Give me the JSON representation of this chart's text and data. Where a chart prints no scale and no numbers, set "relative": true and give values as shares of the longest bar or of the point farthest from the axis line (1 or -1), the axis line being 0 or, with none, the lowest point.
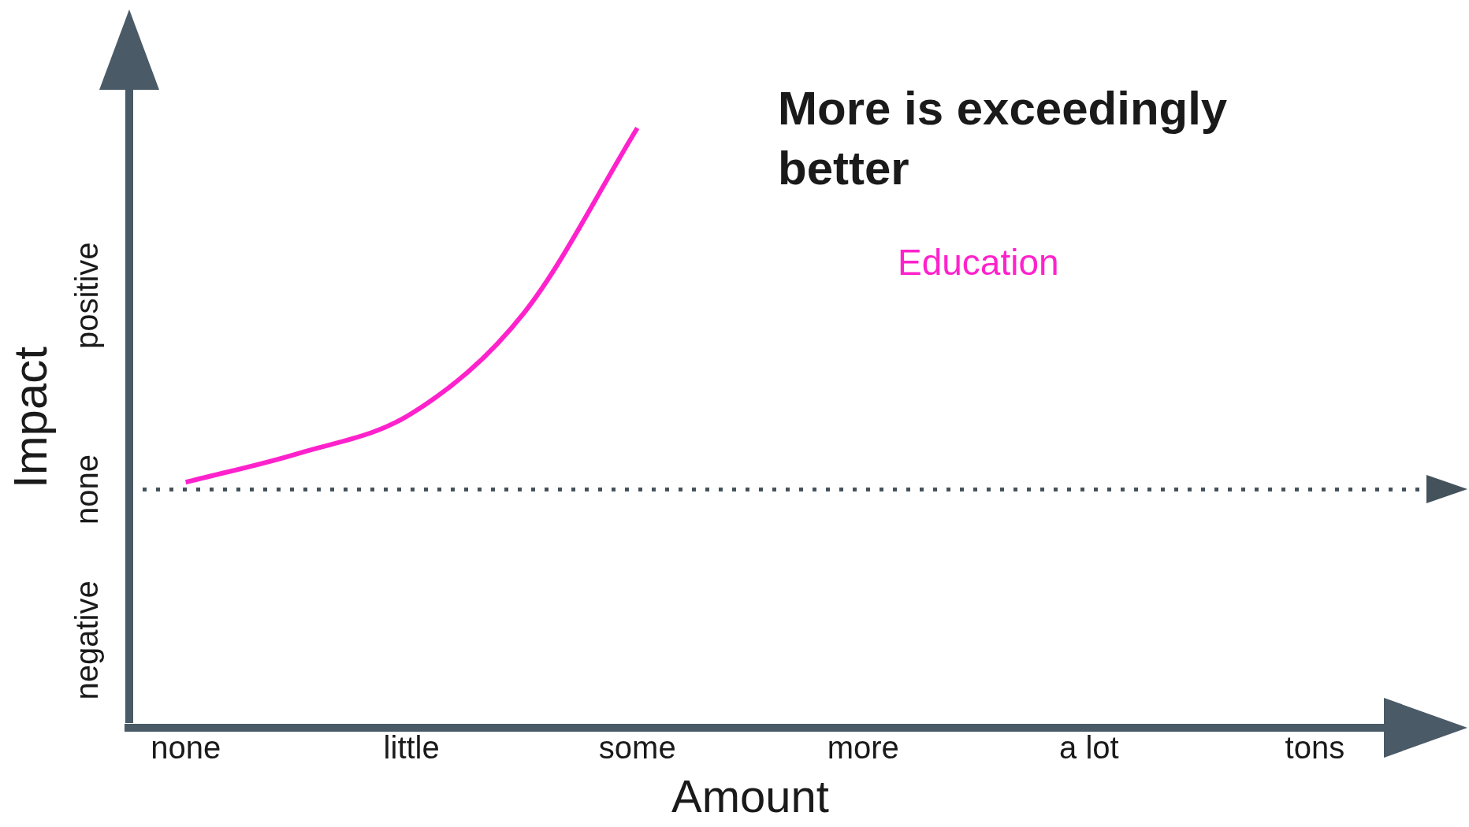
{
  "chart_data": {
    "type": "line",
    "title": "More is exceedingly better",
    "xlabel": "Amount",
    "ylabel": "Impact",
    "categories": [
      "none",
      null,
      "little",
      null,
      "some",
      null,
      "more",
      null,
      "a lot",
      null,
      "tons"
    ],
    "relative": true,
    "series": [
      {
        "name": "Education",
        "color": "#ff22cc",
        "values": [
          0.02,
          0.1,
          0.21,
          0.49,
          1,
          null,
          null,
          null,
          null,
          null,
          null
        ]
      }
    ],
    "ref_lines": [
      {
        "axis": "y",
        "value": 0,
        "label": "none",
        "color": "#44525c",
        "line_style": "dotted"
      }
    ],
    "annotations": [
      "positive",
      "negative"
    ],
    "grid": false,
    "legend": false,
    "marker": "none",
    "line_style": "solid"
  }
}
